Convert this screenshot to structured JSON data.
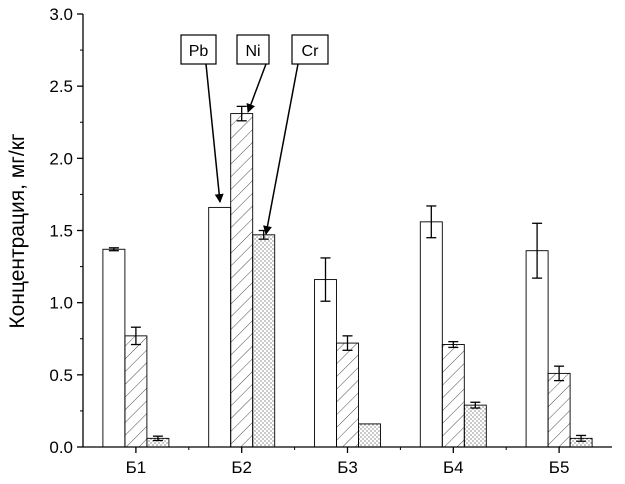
{
  "chart_data": {
    "type": "bar",
    "title": "",
    "xlabel": "",
    "ylabel": "Концентрация, мг/кг",
    "ylim": [
      0,
      3.0
    ],
    "yticks": [
      "0.0",
      "0.5",
      "1.0",
      "1.5",
      "2.0",
      "2.5",
      "3.0"
    ],
    "categories": [
      "Б1",
      "Б2",
      "Б3",
      "Б4",
      "Б5"
    ],
    "series": [
      {
        "name": "Pb",
        "fill": "blank",
        "values": [
          1.37,
          1.66,
          1.16,
          1.56,
          1.36
        ],
        "errors": [
          0.01,
          0.0,
          0.15,
          0.11,
          0.19
        ]
      },
      {
        "name": "Ni",
        "fill": "diagonal-hatch",
        "values": [
          0.77,
          2.31,
          0.72,
          0.71,
          0.51
        ],
        "errors": [
          0.06,
          0.05,
          0.05,
          0.02,
          0.05
        ]
      },
      {
        "name": "Cr",
        "fill": "dots",
        "values": [
          0.06,
          1.47,
          0.16,
          0.29,
          0.06
        ],
        "errors": [
          0.015,
          0.03,
          0.0,
          0.02,
          0.02
        ]
      }
    ],
    "grid": false,
    "legend": "callout labels with arrows (top)",
    "colors": {
      "axis": "#000000",
      "bar_fill": "#ffffff",
      "stroke": "#000000"
    }
  }
}
